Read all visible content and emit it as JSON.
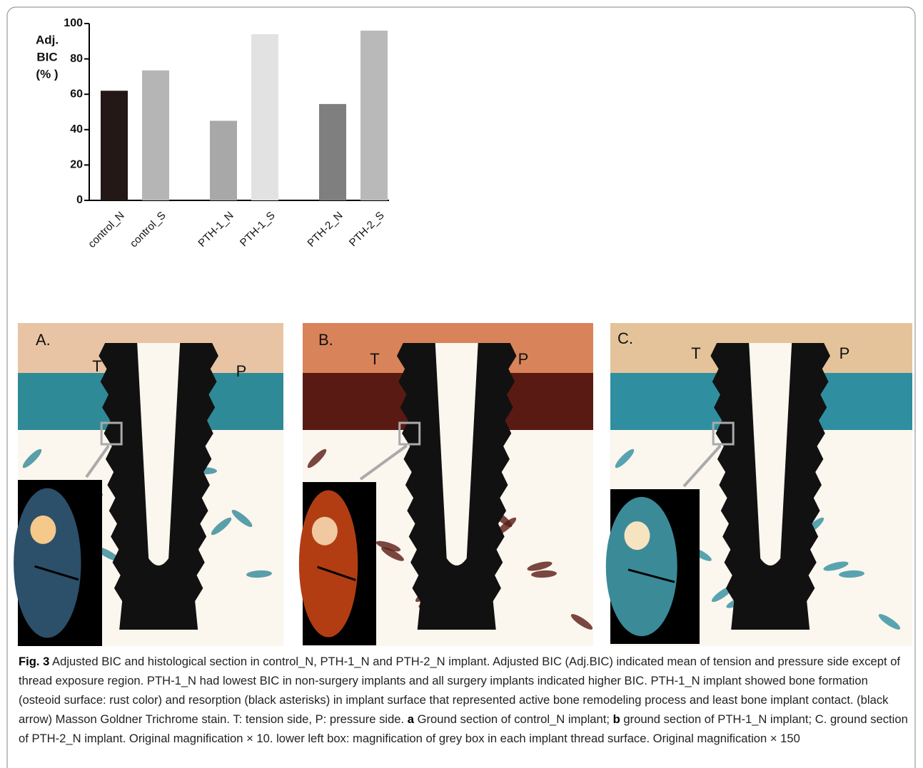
{
  "chart_data": {
    "type": "bar",
    "y_label": [
      "Adj.",
      "BIC",
      "(% )"
    ],
    "categories": [
      "control_N",
      "control_S",
      "PTH-1_N",
      "PTH-1_S",
      "PTH-2_N",
      "PTH-2_S"
    ],
    "values": [
      62,
      73.5,
      45,
      94,
      54.5,
      96
    ],
    "colors": [
      "#231815",
      "#b5b5b5",
      "#a8a8a8",
      "#e2e2e2",
      "#7f7f7f",
      "#b9b9b9"
    ],
    "ylim": [
      0,
      100
    ],
    "yticks": [
      0,
      20,
      40,
      60,
      80,
      100
    ],
    "grid": false
  },
  "panels": [
    {
      "label": "A.",
      "tension": "T",
      "pressure": "P"
    },
    {
      "label": "B.",
      "tension": "T",
      "pressure": "P"
    },
    {
      "label": "C.",
      "tension": "T",
      "pressure": "P"
    }
  ],
  "caption": {
    "label": "Fig. 3",
    "segments": [
      "Adjusted BIC and histological section in control_N, PTH-1_N and PTH-2_N implant. Adjusted BIC (Adj.BIC) indicated mean of tension and pressure side except of thread exposure region. PTH-1_N had lowest BIC in non-surgery implants and all surgery implants indicated higher BIC. PTH-1_N implant showed bone formation (osteoid surface: rust color) and resorption (black asterisks) in implant surface that represented active bone remodeling process and least bone implant contact. (black arrow) Masson Goldner Trichrome stain. T: tension side, P: pressure side.",
      "a",
      "Ground section of control_N implant;",
      "b",
      "ground section of PTH-1_N implant; C. ground section of PTH-2_N implant. Original magnification × 10. lower left box: magnification of grey box in each implant thread surface. Original magnification × 150"
    ]
  }
}
